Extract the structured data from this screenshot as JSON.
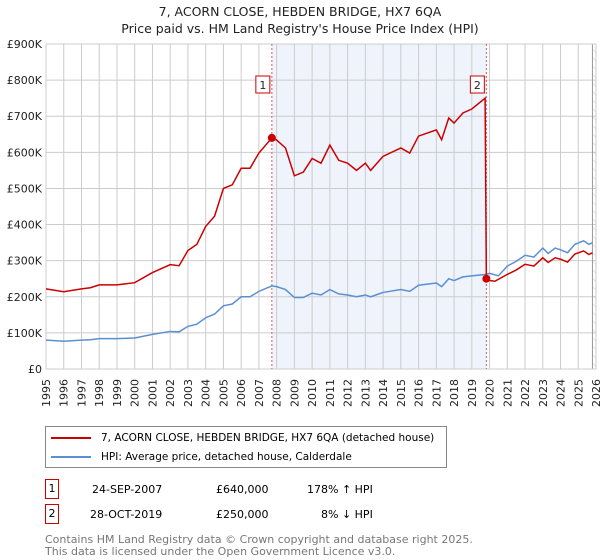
{
  "chart_data": {
    "type": "line",
    "title": "7, ACORN CLOSE, HEBDEN BRIDGE, HX7 6QA",
    "subtitle": "Price paid vs. HM Land Registry's House Price Index (HPI)",
    "xlim": [
      1995,
      2026
    ],
    "ylim": [
      0,
      900000
    ],
    "y_ticks": [
      0,
      100000,
      200000,
      300000,
      400000,
      500000,
      600000,
      700000,
      800000,
      900000
    ],
    "y_tick_labels": [
      "£0",
      "£100K",
      "£200K",
      "£300K",
      "£400K",
      "£500K",
      "£600K",
      "£700K",
      "£800K",
      "£900K"
    ],
    "x_tick_labels": [
      "1995",
      "1996",
      "1997",
      "1998",
      "1999",
      "2000",
      "2001",
      "2002",
      "2003",
      "2004",
      "2005",
      "2006",
      "2007",
      "2008",
      "2009",
      "2010",
      "2011",
      "2012",
      "2013",
      "2014",
      "2015",
      "2016",
      "2017",
      "2018",
      "2019",
      "2020",
      "2021",
      "2022",
      "2023",
      "2024",
      "2025",
      "2026"
    ],
    "grid": true,
    "series": [
      {
        "name": "7, ACORN CLOSE, HEBDEN BRIDGE, HX7 6QA (detached house)",
        "color": "#cc0000",
        "x": [
          1995,
          1996,
          1997,
          1997.5,
          1998,
          1999,
          2000,
          2001,
          2002,
          2002.5,
          2003,
          2003.5,
          2004,
          2004.5,
          2005,
          2005.5,
          2006,
          2006.5,
          2007,
          2007.73,
          2008,
          2008.5,
          2009,
          2009.5,
          2010,
          2010.5,
          2011,
          2011.5,
          2012,
          2012.5,
          2013,
          2013.3,
          2014,
          2015,
          2015.5,
          2016,
          2017,
          2017.3,
          2017.7,
          2018,
          2018.5,
          2019,
          2019.75,
          2019.82,
          2020,
          2020.3,
          2021,
          2021.5,
          2022,
          2022.5,
          2023,
          2023.3,
          2023.7,
          2024,
          2024.4,
          2024.8,
          2025.3,
          2025.6,
          2025.8
        ],
        "y": [
          222000,
          214000,
          222000,
          225000,
          233000,
          233000,
          239000,
          267000,
          289000,
          286000,
          328000,
          345000,
          395000,
          423000,
          500000,
          510000,
          556000,
          556000,
          598000,
          640000,
          634000,
          612000,
          535000,
          545000,
          583000,
          570000,
          620000,
          578000,
          570000,
          550000,
          570000,
          550000,
          589000,
          612000,
          598000,
          645000,
          662000,
          635000,
          695000,
          681000,
          709000,
          720000,
          750000,
          250000,
          245000,
          243000,
          262000,
          274000,
          290000,
          285000,
          308000,
          295000,
          308000,
          304000,
          296000,
          318000,
          327000,
          317000,
          322000
        ]
      },
      {
        "name": "HPI: Average price, detached house, Calderdale",
        "color": "#5b8fd4",
        "x": [
          1995,
          1996,
          1997,
          1997.5,
          1998,
          1999,
          2000,
          2001,
          2002,
          2002.5,
          2003,
          2003.5,
          2004,
          2004.5,
          2005,
          2005.5,
          2006,
          2006.5,
          2007,
          2007.73,
          2008,
          2008.5,
          2009,
          2009.5,
          2010,
          2010.5,
          2011,
          2011.5,
          2012,
          2012.5,
          2013,
          2013.3,
          2014,
          2015,
          2015.5,
          2016,
          2017,
          2017.3,
          2017.7,
          2018,
          2018.5,
          2019,
          2019.82,
          2020,
          2020.5,
          2021,
          2021.5,
          2022,
          2022.5,
          2023,
          2023.3,
          2023.7,
          2024,
          2024.4,
          2024.8,
          2025.3,
          2025.6,
          2025.8
        ],
        "y": [
          80000,
          77000,
          80000,
          81000,
          84000,
          84000,
          86000,
          96000,
          104000,
          103000,
          118000,
          124000,
          142000,
          152000,
          175000,
          180000,
          200000,
          200000,
          215000,
          230000,
          228000,
          220000,
          198000,
          198000,
          210000,
          205000,
          220000,
          208000,
          205000,
          200000,
          205000,
          200000,
          212000,
          220000,
          215000,
          232000,
          238000,
          228000,
          250000,
          245000,
          255000,
          258000,
          262000,
          265000,
          258000,
          285000,
          298000,
          315000,
          310000,
          335000,
          320000,
          335000,
          330000,
          322000,
          345000,
          355000,
          345000,
          350000
        ]
      }
    ],
    "annotations": [
      {
        "label": "1",
        "x": 2007.73,
        "y": 640000
      },
      {
        "label": "2",
        "x": 2019.82,
        "y": 250000
      }
    ],
    "shaded_range": [
      2007.73,
      2019.82
    ],
    "forecast_from": 2025.8
  },
  "legend": {
    "items": [
      {
        "label": "7, ACORN CLOSE, HEBDEN BRIDGE, HX7 6QA (detached house)",
        "color": "#cc0000"
      },
      {
        "label": "HPI: Average price, detached house, Calderdale",
        "color": "#5b8fd4"
      }
    ]
  },
  "sales": [
    {
      "num": "1",
      "date": "24-SEP-2007",
      "price": "£640,000",
      "hpi": "178% ↑ HPI"
    },
    {
      "num": "2",
      "date": "28-OCT-2019",
      "price": "£250,000",
      "hpi": "8% ↓ HPI"
    }
  ],
  "footer": {
    "line1": "Contains HM Land Registry data © Crown copyright and database right 2025.",
    "line2": "This data is licensed under the Open Government Licence v3.0."
  }
}
